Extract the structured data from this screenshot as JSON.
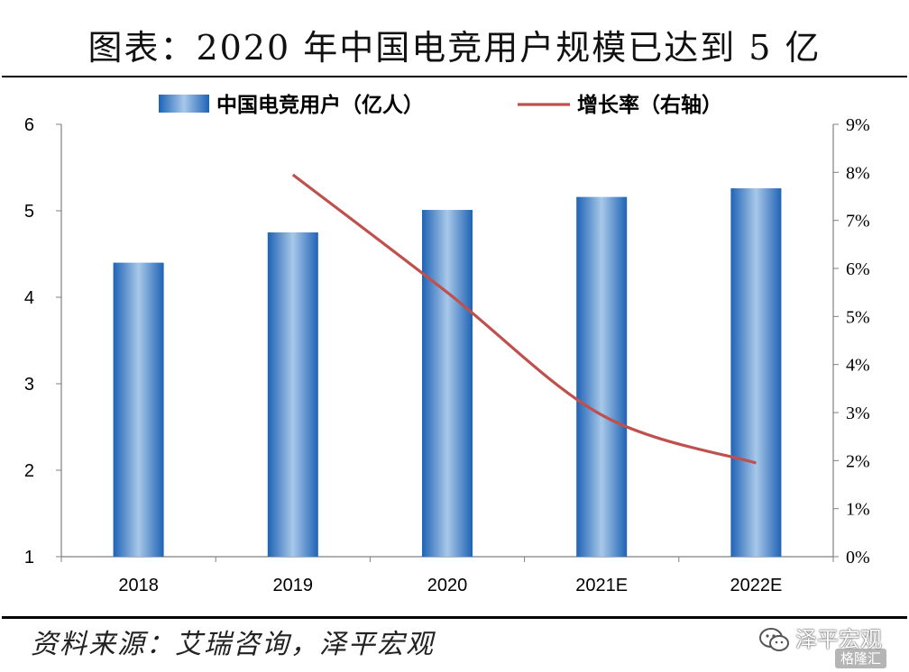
{
  "title": "图表：2020 年中国电竞用户规模已达到 5 亿",
  "source": "资料来源：艾瑞咨询，泽平宏观",
  "watermark": {
    "name": "泽平宏观",
    "badge": "格隆汇",
    "icon": "wechat-icon"
  },
  "colors": {
    "bar": "#2a6fc0",
    "bar_light": "#9fc1e4",
    "line": "#c0504d",
    "axis": "#808080"
  },
  "chart_data": {
    "type": "bar",
    "categories": [
      "2018",
      "2019",
      "2020",
      "2021E",
      "2022E"
    ],
    "series": [
      {
        "name": "中国电竞用户（亿人）",
        "type": "bar",
        "axis": "left",
        "values": [
          4.4,
          4.75,
          5.01,
          5.16,
          5.26
        ]
      },
      {
        "name": "增长率（右轴）",
        "type": "line",
        "axis": "right",
        "values": [
          null,
          7.95,
          5.5,
          2.95,
          1.95
        ]
      }
    ],
    "left_axis": {
      "ylim": [
        1,
        6
      ],
      "ticks": [
        "1",
        "2",
        "3",
        "4",
        "5",
        "6"
      ]
    },
    "right_axis": {
      "ylim": [
        0,
        9
      ],
      "ticks": [
        "0%",
        "1%",
        "2%",
        "3%",
        "4%",
        "5%",
        "6%",
        "7%",
        "8%",
        "9%"
      ]
    },
    "legend": "top-center",
    "grid": false
  }
}
